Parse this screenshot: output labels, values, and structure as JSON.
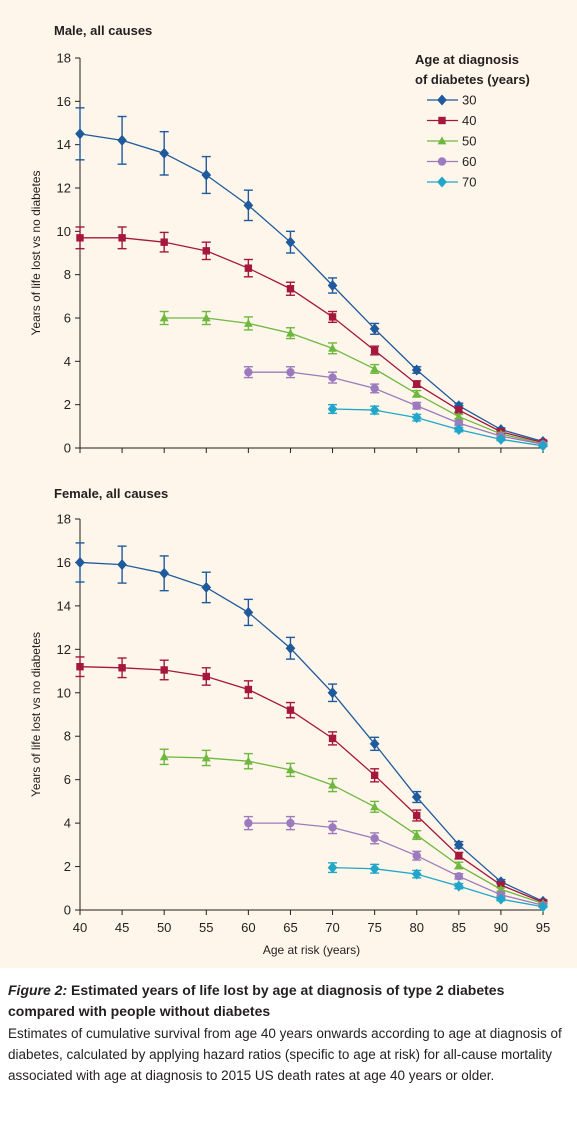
{
  "caption": {
    "figure_label": "Figure 2:",
    "title": "Estimated years of life lost by age at diagnosis of type 2 diabetes compared with people without diabetes",
    "body": "Estimates of cumulative survival from age 40 years onwards according to age at diagnosis of diabetes, calculated by applying hazard ratios (specific to age at risk) for all-cause mortality associated with age at diagnosis to 2015 US death rates at age 40 years or older."
  },
  "colors": {
    "figure_background": "#fef6ea",
    "text": "#231f20"
  },
  "legend": {
    "title_line1": "Age at diagnosis",
    "title_line2": "of diabetes (years)",
    "placement": "top-right of upper panel"
  },
  "chart_data": [
    {
      "type": "line",
      "title": "Male, all causes",
      "xlabel": "",
      "ylabel": "Years of life lost vs no diabetes",
      "xlim": [
        40,
        95
      ],
      "ylim": [
        0,
        18
      ],
      "xticks": [
        "40",
        "45",
        "50",
        "55",
        "60",
        "65",
        "70",
        "75",
        "80",
        "85",
        "90",
        "95"
      ],
      "xticks_shown": false,
      "yticks": [
        "0",
        "2",
        "4",
        "6",
        "8",
        "10",
        "12",
        "14",
        "16",
        "18"
      ],
      "grid": false,
      "series": [
        {
          "name": "30",
          "marker": "diamond",
          "color": "#1f5a9d",
          "x": [
            40,
            45,
            50,
            55,
            60,
            65,
            70,
            75,
            80,
            85,
            90,
            95
          ],
          "y": [
            14.5,
            14.2,
            13.6,
            12.6,
            11.2,
            9.5,
            7.5,
            5.5,
            3.6,
            1.95,
            0.85,
            0.3
          ],
          "err": [
            1.2,
            1.1,
            1.0,
            0.85,
            0.7,
            0.5,
            0.35,
            0.25,
            0.15,
            0.12,
            0.08,
            0.05
          ]
        },
        {
          "name": "40",
          "marker": "square",
          "color": "#a6173d",
          "x": [
            40,
            45,
            50,
            55,
            60,
            65,
            70,
            75,
            80,
            85,
            90,
            95
          ],
          "y": [
            9.7,
            9.7,
            9.5,
            9.1,
            8.3,
            7.35,
            6.05,
            4.5,
            2.95,
            1.75,
            0.75,
            0.25
          ],
          "err": [
            0.5,
            0.5,
            0.45,
            0.4,
            0.4,
            0.3,
            0.25,
            0.2,
            0.15,
            0.1,
            0.07,
            0.05
          ]
        },
        {
          "name": "50",
          "marker": "triangle",
          "color": "#6fb83f",
          "x": [
            50,
            55,
            60,
            65,
            70,
            75,
            80,
            85,
            90,
            95
          ],
          "y": [
            6.0,
            6.0,
            5.75,
            5.3,
            4.6,
            3.65,
            2.5,
            1.45,
            0.65,
            0.2
          ],
          "err": [
            0.3,
            0.3,
            0.3,
            0.25,
            0.25,
            0.2,
            0.15,
            0.1,
            0.07,
            0.05
          ]
        },
        {
          "name": "60",
          "marker": "circle",
          "color": "#9b7bbd",
          "x": [
            60,
            65,
            70,
            75,
            80,
            85,
            90,
            95
          ],
          "y": [
            3.5,
            3.5,
            3.25,
            2.75,
            1.95,
            1.15,
            0.55,
            0.17
          ],
          "err": [
            0.25,
            0.25,
            0.25,
            0.2,
            0.15,
            0.1,
            0.06,
            0.04
          ]
        },
        {
          "name": "70",
          "marker": "diamond",
          "color": "#21a6c9",
          "x": [
            70,
            75,
            80,
            85,
            90,
            95
          ],
          "y": [
            1.8,
            1.75,
            1.4,
            0.85,
            0.4,
            0.1
          ],
          "err": [
            0.2,
            0.18,
            0.15,
            0.1,
            0.06,
            0.03
          ]
        }
      ]
    },
    {
      "type": "line",
      "title": "Female, all causes",
      "xlabel": "Age at risk (years)",
      "ylabel": "Years of life lost vs no diabetes",
      "xlim": [
        40,
        95
      ],
      "ylim": [
        0,
        18
      ],
      "xticks": [
        "40",
        "45",
        "50",
        "55",
        "60",
        "65",
        "70",
        "75",
        "80",
        "85",
        "90",
        "95"
      ],
      "xticks_shown": true,
      "yticks": [
        "0",
        "2",
        "4",
        "6",
        "8",
        "10",
        "12",
        "14",
        "16",
        "18"
      ],
      "grid": false,
      "series": [
        {
          "name": "30",
          "marker": "diamond",
          "color": "#1f5a9d",
          "x": [
            40,
            45,
            50,
            55,
            60,
            65,
            70,
            75,
            80,
            85,
            90,
            95
          ],
          "y": [
            16.0,
            15.9,
            15.5,
            14.85,
            13.7,
            12.05,
            10.0,
            7.65,
            5.2,
            3.0,
            1.3,
            0.4
          ],
          "err": [
            0.9,
            0.85,
            0.8,
            0.7,
            0.6,
            0.5,
            0.4,
            0.3,
            0.25,
            0.15,
            0.1,
            0.06
          ]
        },
        {
          "name": "40",
          "marker": "square",
          "color": "#a6173d",
          "x": [
            40,
            45,
            50,
            55,
            60,
            65,
            70,
            75,
            80,
            85,
            90,
            95
          ],
          "y": [
            11.2,
            11.15,
            11.05,
            10.75,
            10.15,
            9.2,
            7.9,
            6.2,
            4.35,
            2.5,
            1.15,
            0.35
          ],
          "err": [
            0.45,
            0.45,
            0.45,
            0.4,
            0.4,
            0.35,
            0.3,
            0.3,
            0.25,
            0.15,
            0.1,
            0.05
          ]
        },
        {
          "name": "50",
          "marker": "triangle",
          "color": "#6fb83f",
          "x": [
            50,
            55,
            60,
            65,
            70,
            75,
            80,
            85,
            90,
            95
          ],
          "y": [
            7.05,
            7.0,
            6.85,
            6.45,
            5.75,
            4.75,
            3.45,
            2.05,
            0.95,
            0.3
          ],
          "err": [
            0.35,
            0.35,
            0.35,
            0.3,
            0.3,
            0.25,
            0.2,
            0.15,
            0.08,
            0.05
          ]
        },
        {
          "name": "60",
          "marker": "circle",
          "color": "#9b7bbd",
          "x": [
            60,
            65,
            70,
            75,
            80,
            85,
            90,
            95
          ],
          "y": [
            4.0,
            4.0,
            3.8,
            3.3,
            2.5,
            1.55,
            0.7,
            0.22
          ],
          "err": [
            0.3,
            0.3,
            0.28,
            0.25,
            0.2,
            0.12,
            0.07,
            0.04
          ]
        },
        {
          "name": "70",
          "marker": "diamond",
          "color": "#21a6c9",
          "x": [
            70,
            75,
            80,
            85,
            90,
            95
          ],
          "y": [
            1.95,
            1.9,
            1.65,
            1.1,
            0.5,
            0.15
          ],
          "err": [
            0.22,
            0.2,
            0.17,
            0.12,
            0.07,
            0.03
          ]
        }
      ]
    }
  ]
}
